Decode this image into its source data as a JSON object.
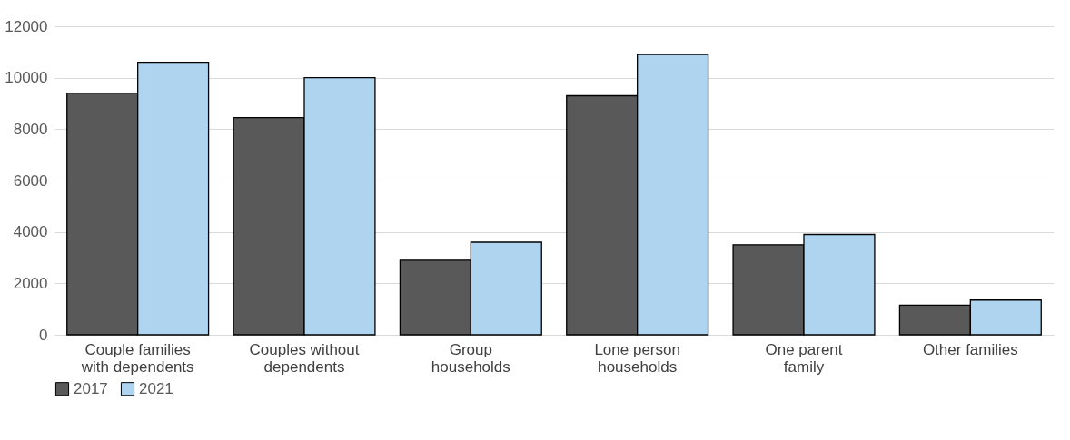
{
  "chart_data": {
    "type": "bar",
    "categories": [
      "Couple families with dependents",
      "Couples without dependents",
      "Group households",
      "Lone person households",
      "One parent family",
      "Other families"
    ],
    "series": [
      {
        "name": "2017",
        "color": "#595959",
        "values": [
          9400,
          8450,
          2900,
          9300,
          3500,
          1150
        ]
      },
      {
        "name": "2021",
        "color": "#aed4f0",
        "values": [
          10600,
          10000,
          3600,
          10900,
          3900,
          1350
        ]
      }
    ],
    "ylim": [
      0,
      12000
    ],
    "yticks": [
      0,
      2000,
      4000,
      6000,
      8000,
      10000,
      12000
    ],
    "grid": "y",
    "legend": "bottom"
  }
}
